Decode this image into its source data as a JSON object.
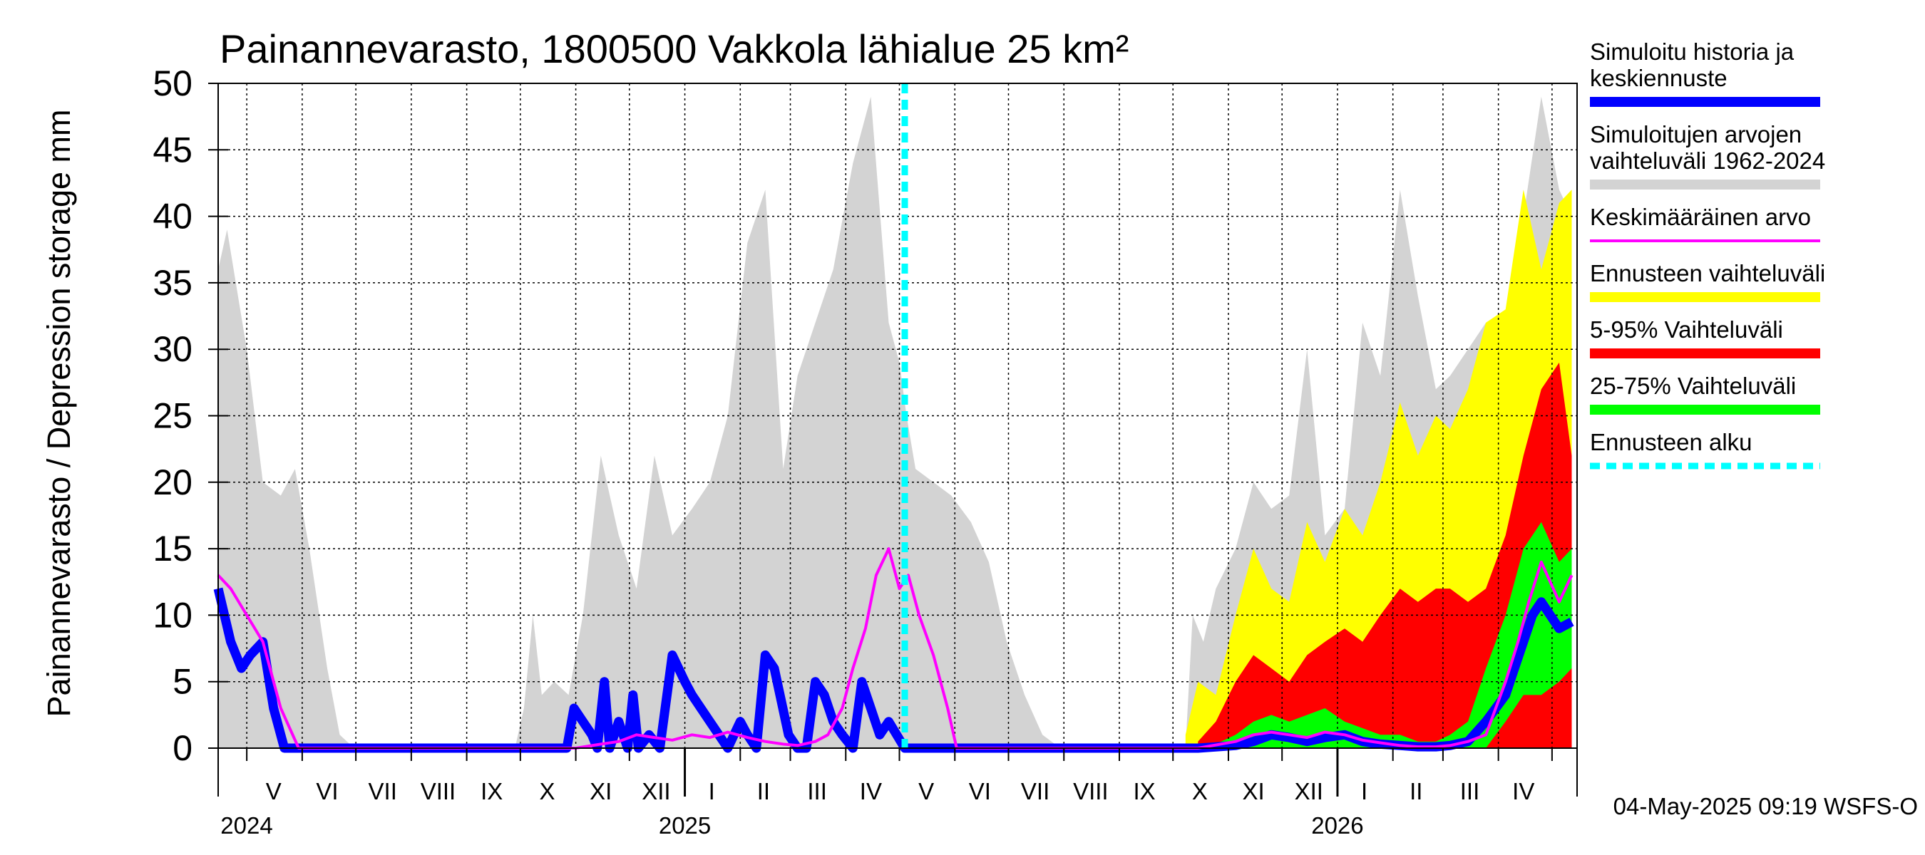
{
  "chart_data": {
    "type": "area",
    "title": "Painannevarasto, 1800500 Vakkola lähialue 25 km²",
    "ylabel": "Painannevarasto / Depression storage    mm",
    "ylim": [
      0,
      50
    ],
    "yticks": [
      0,
      5,
      10,
      15,
      20,
      25,
      30,
      35,
      40,
      45,
      50
    ],
    "xlim": [
      "2024-04-15",
      "2026-05-15"
    ],
    "grid": true,
    "legend_position": "right",
    "forecast_start": "2025-05-04",
    "month_labels": [
      {
        "label": "V",
        "date": "2024-05-16"
      },
      {
        "label": "VI",
        "date": "2024-06-15"
      },
      {
        "label": "VII",
        "date": "2024-07-16"
      },
      {
        "label": "VIII",
        "date": "2024-08-16"
      },
      {
        "label": "IX",
        "date": "2024-09-15"
      },
      {
        "label": "X",
        "date": "2024-10-16"
      },
      {
        "label": "XI",
        "date": "2024-11-15"
      },
      {
        "label": "XII",
        "date": "2024-12-16"
      },
      {
        "label": "I",
        "date": "2025-01-16"
      },
      {
        "label": "II",
        "date": "2025-02-14"
      },
      {
        "label": "III",
        "date": "2025-03-16"
      },
      {
        "label": "IV",
        "date": "2025-04-15"
      },
      {
        "label": "V",
        "date": "2025-05-16"
      },
      {
        "label": "VI",
        "date": "2025-06-15"
      },
      {
        "label": "VII",
        "date": "2025-07-16"
      },
      {
        "label": "VIII",
        "date": "2025-08-16"
      },
      {
        "label": "IX",
        "date": "2025-09-15"
      },
      {
        "label": "X",
        "date": "2025-10-16"
      },
      {
        "label": "XI",
        "date": "2025-11-15"
      },
      {
        "label": "XII",
        "date": "2025-12-16"
      },
      {
        "label": "I",
        "date": "2026-01-16"
      },
      {
        "label": "II",
        "date": "2026-02-14"
      },
      {
        "label": "III",
        "date": "2026-03-16"
      },
      {
        "label": "IV",
        "date": "2026-04-15"
      }
    ],
    "year_labels": [
      {
        "label": "2024",
        "date": "2024-05-01"
      },
      {
        "label": "2025",
        "date": "2025-01-01"
      },
      {
        "label": "2026",
        "date": "2026-01-01"
      }
    ],
    "legend": [
      {
        "label": "Simuloitu historia ja keskiennuste",
        "lines": [
          "Simuloitu historia ja",
          "keskiennuste"
        ],
        "color": "#0000ff",
        "style": "thick"
      },
      {
        "label": "Simuloitujen arvojen vaihteluväli 1962-2024",
        "lines": [
          "Simuloitujen arvojen",
          "vaihteluväli 1962-2024"
        ],
        "color": "#d3d3d3",
        "style": "thick"
      },
      {
        "label": "Keskimääräinen arvo",
        "lines": [
          "Keskimääräinen arvo"
        ],
        "color": "#ff00ff",
        "style": "thin"
      },
      {
        "label": "Ennusteen vaihteluväli",
        "lines": [
          "Ennusteen vaihteluväli"
        ],
        "color": "#ffff00",
        "style": "thick"
      },
      {
        "label": "5-95% Vaihteluväli",
        "lines": [
          "5-95% Vaihteluväli"
        ],
        "color": "#ff0000",
        "style": "thick"
      },
      {
        "label": "25-75% Vaihteluväli",
        "lines": [
          "25-75% Vaihteluväli"
        ],
        "color": "#00ff00",
        "style": "thick"
      },
      {
        "label": "Ennusteen alku",
        "lines": [
          "Ennusteen alku"
        ],
        "color": "#00ffff",
        "style": "dashed"
      }
    ],
    "series": [
      {
        "name": "Simuloitujen arvojen vaihteluväli 1962-2024",
        "color": "#d3d3d3",
        "kind": "band",
        "x": [
          "2024-04-15",
          "2024-04-20",
          "2024-05-01",
          "2024-05-10",
          "2024-05-20",
          "2024-05-28",
          "2024-06-05",
          "2024-06-15",
          "2024-06-22",
          "2024-06-30",
          "2024-09-28",
          "2024-10-03",
          "2024-10-08",
          "2024-10-13",
          "2024-10-20",
          "2024-10-28",
          "2024-11-05",
          "2024-11-15",
          "2024-11-25",
          "2024-12-05",
          "2024-12-15",
          "2024-12-25",
          "2025-01-05",
          "2025-01-15",
          "2025-01-25",
          "2025-02-05",
          "2025-02-15",
          "2025-02-25",
          "2025-03-05",
          "2025-03-15",
          "2025-03-25",
          "2025-04-05",
          "2025-04-15",
          "2025-04-25",
          "2025-05-01",
          "2025-05-05",
          "2025-05-10",
          "2025-05-20",
          "2025-05-30",
          "2025-06-10",
          "2025-06-20",
          "2025-06-30",
          "2025-07-10",
          "2025-07-20",
          "2025-07-30",
          "2025-10-08",
          "2025-10-12",
          "2025-10-18",
          "2025-10-25",
          "2025-11-05",
          "2025-11-15",
          "2025-11-25",
          "2025-12-05",
          "2025-12-15",
          "2025-12-25",
          "2026-01-05",
          "2026-01-15",
          "2026-01-25",
          "2026-02-05",
          "2026-02-15",
          "2026-02-25",
          "2026-03-05",
          "2026-03-15",
          "2026-03-25",
          "2026-04-05",
          "2026-04-15",
          "2026-04-25",
          "2026-05-05",
          "2026-05-12"
        ],
        "lo": [
          0,
          0,
          0,
          0,
          0,
          0,
          0,
          0,
          0,
          0,
          0,
          0,
          0,
          0,
          0,
          0,
          0,
          0,
          0,
          0,
          0,
          0,
          0,
          0,
          0,
          0,
          0,
          0,
          0,
          0,
          0,
          0,
          0,
          0,
          0,
          0,
          0,
          0,
          0,
          0,
          0,
          0,
          0,
          0,
          0,
          0,
          0,
          0,
          0,
          0,
          0,
          0,
          0,
          0,
          0,
          0,
          0,
          0,
          0,
          0,
          0,
          0,
          0,
          0,
          0,
          0,
          0,
          0,
          0
        ],
        "hi": [
          36,
          39,
          30,
          20,
          19,
          21,
          15,
          6,
          1,
          0,
          0,
          3,
          10,
          4,
          5,
          4,
          10,
          22,
          16,
          12,
          22,
          16,
          18,
          20,
          25,
          38,
          42,
          21,
          28,
          32,
          36,
          44,
          49,
          32,
          29,
          25,
          21,
          20,
          19,
          17,
          14,
          8,
          4,
          1,
          0,
          0,
          10,
          8,
          12,
          15,
          20,
          18,
          19,
          30,
          16,
          18,
          32,
          28,
          42,
          34,
          27,
          28,
          30,
          32,
          29,
          40,
          49,
          42,
          40
        ]
      },
      {
        "name": "Ennusteen vaihteluväli",
        "color": "#ffff00",
        "kind": "band",
        "x": [
          "2025-10-08",
          "2025-10-15",
          "2025-10-25",
          "2025-11-05",
          "2025-11-15",
          "2025-11-25",
          "2025-12-05",
          "2025-12-15",
          "2025-12-25",
          "2026-01-05",
          "2026-01-15",
          "2026-01-25",
          "2026-02-05",
          "2026-02-15",
          "2026-02-25",
          "2026-03-05",
          "2026-03-15",
          "2026-03-25",
          "2026-04-05",
          "2026-04-15",
          "2026-04-25",
          "2026-05-05",
          "2026-05-12"
        ],
        "lo": [
          0,
          0,
          0,
          0,
          0,
          0,
          0,
          0,
          0,
          0,
          0,
          0,
          0,
          0,
          0,
          0,
          0,
          0,
          0,
          0,
          0,
          0,
          0
        ],
        "hi": [
          1,
          5,
          4,
          10,
          15,
          12,
          11,
          17,
          14,
          18,
          16,
          20,
          26,
          22,
          25,
          24,
          27,
          32,
          33,
          42,
          36,
          41,
          42
        ]
      },
      {
        "name": "5-95% Vaihteluväli",
        "color": "#ff0000",
        "kind": "band",
        "x": [
          "2025-10-15",
          "2025-10-25",
          "2025-11-05",
          "2025-11-15",
          "2025-11-25",
          "2025-12-05",
          "2025-12-15",
          "2025-12-25",
          "2026-01-05",
          "2026-01-15",
          "2026-01-25",
          "2026-02-05",
          "2026-02-15",
          "2026-02-25",
          "2026-03-05",
          "2026-03-15",
          "2026-03-25",
          "2026-04-05",
          "2026-04-15",
          "2026-04-25",
          "2026-05-05",
          "2026-05-12"
        ],
        "lo": [
          0,
          0,
          0,
          0,
          0,
          0,
          0,
          0,
          0,
          0,
          0,
          0,
          0,
          0,
          0,
          0,
          0,
          0,
          0,
          0,
          0,
          0
        ],
        "hi": [
          0.5,
          2,
          5,
          7,
          6,
          5,
          7,
          8,
          9,
          8,
          10,
          12,
          11,
          12,
          12,
          11,
          12,
          16,
          22,
          27,
          29,
          22
        ]
      },
      {
        "name": "25-75% Vaihteluväli",
        "color": "#00ff00",
        "kind": "band",
        "x": [
          "2025-10-20",
          "2025-11-05",
          "2025-11-15",
          "2025-11-25",
          "2025-12-05",
          "2025-12-15",
          "2025-12-25",
          "2026-01-05",
          "2026-01-15",
          "2026-01-25",
          "2026-02-05",
          "2026-02-15",
          "2026-02-25",
          "2026-03-05",
          "2026-03-15",
          "2026-03-25",
          "2026-04-05",
          "2026-04-15",
          "2026-04-25",
          "2026-05-05",
          "2026-05-12"
        ],
        "lo": [
          0,
          0,
          0,
          0,
          0,
          0,
          0,
          0,
          0,
          0,
          0,
          0,
          0,
          0,
          0,
          0,
          2,
          4,
          4,
          5,
          6
        ],
        "hi": [
          0,
          1,
          2,
          2.5,
          2,
          2.5,
          3,
          2,
          1.5,
          1,
          1,
          0.5,
          0.5,
          1,
          2,
          6,
          10,
          15,
          17,
          14,
          15
        ]
      },
      {
        "name": "Simuloitu historia ja keskiennuste",
        "color": "#0000ff",
        "kind": "line",
        "x": [
          "2024-04-15",
          "2024-04-22",
          "2024-04-28",
          "2024-05-03",
          "2024-05-10",
          "2024-05-16",
          "2024-05-22",
          "2024-05-28",
          "2024-06-05",
          "2024-10-27",
          "2024-10-31",
          "2024-11-05",
          "2024-11-10",
          "2024-11-13",
          "2024-11-17",
          "2024-11-20",
          "2024-11-25",
          "2024-11-30",
          "2024-12-03",
          "2024-12-06",
          "2024-12-12",
          "2024-12-18",
          "2024-12-25",
          "2025-01-01",
          "2025-01-05",
          "2025-01-10",
          "2025-01-15",
          "2025-01-20",
          "2025-01-25",
          "2025-02-01",
          "2025-02-05",
          "2025-02-10",
          "2025-02-15",
          "2025-02-20",
          "2025-02-28",
          "2025-03-05",
          "2025-03-10",
          "2025-03-15",
          "2025-03-20",
          "2025-03-25",
          "2025-03-30",
          "2025-04-05",
          "2025-04-10",
          "2025-04-15",
          "2025-04-20",
          "2025-04-25",
          "2025-05-04",
          "2025-10-15",
          "2025-11-05",
          "2025-11-15",
          "2025-11-25",
          "2025-12-05",
          "2025-12-15",
          "2025-12-25",
          "2026-01-05",
          "2026-01-15",
          "2026-01-25",
          "2026-02-05",
          "2026-02-15",
          "2026-02-25",
          "2026-03-05",
          "2026-03-15",
          "2026-03-25",
          "2026-04-05",
          "2026-04-10",
          "2026-04-15",
          "2026-04-20",
          "2026-04-25",
          "2026-05-05",
          "2026-05-12"
        ],
        "y": [
          12,
          8,
          6,
          7,
          8,
          3,
          0,
          0,
          0,
          0,
          3,
          2,
          1,
          0,
          5,
          0,
          2,
          0,
          4,
          0,
          1,
          0,
          7,
          5,
          4,
          3,
          2,
          1,
          0,
          2,
          1,
          0,
          7,
          6,
          1,
          0,
          0,
          5,
          4,
          2,
          1,
          0,
          5,
          3,
          1,
          2,
          0,
          0,
          0.2,
          0.5,
          1,
          0.8,
          0.5,
          0.8,
          1,
          0.5,
          0.3,
          0.2,
          0.1,
          0.1,
          0.2,
          0.5,
          2,
          4,
          6,
          8,
          10,
          11,
          9,
          9.5
        ]
      },
      {
        "name": "Keskimääräinen arvo",
        "color": "#ff00ff",
        "kind": "line",
        "x": [
          "2024-04-15",
          "2024-04-22",
          "2024-05-01",
          "2024-05-10",
          "2024-05-20",
          "2024-05-30",
          "2024-10-20",
          "2024-11-01",
          "2024-11-15",
          "2024-11-25",
          "2024-12-05",
          "2024-12-15",
          "2024-12-25",
          "2025-01-05",
          "2025-01-15",
          "2025-01-25",
          "2025-02-05",
          "2025-02-15",
          "2025-02-25",
          "2025-03-05",
          "2025-03-15",
          "2025-03-22",
          "2025-03-30",
          "2025-04-05",
          "2025-04-12",
          "2025-04-18",
          "2025-04-25",
          "2025-05-01",
          "2025-05-06",
          "2025-05-12",
          "2025-05-20",
          "2025-05-28",
          "2025-06-02",
          "2025-10-15",
          "2025-11-05",
          "2025-11-15",
          "2025-11-25",
          "2025-12-05",
          "2025-12-15",
          "2025-12-25",
          "2026-01-05",
          "2026-01-15",
          "2026-01-25",
          "2026-02-05",
          "2026-02-15",
          "2026-02-25",
          "2026-03-05",
          "2026-03-15",
          "2026-03-25",
          "2026-04-05",
          "2026-04-12",
          "2026-04-18",
          "2026-04-25",
          "2026-05-05",
          "2026-05-12"
        ],
        "y": [
          13,
          12,
          10,
          8,
          3,
          0,
          0,
          0,
          0.3,
          0.5,
          1,
          0.8,
          0.6,
          1,
          0.8,
          1.2,
          0.8,
          0.5,
          0.3,
          0.2,
          0.5,
          1,
          3,
          6,
          9,
          13,
          15,
          12,
          13,
          10,
          7,
          3,
          0,
          0,
          0.5,
          1,
          1.2,
          1,
          0.8,
          1.2,
          1,
          0.6,
          0.4,
          0.2,
          0.1,
          0.1,
          0.2,
          0.5,
          1,
          5,
          8,
          11,
          14,
          11,
          13
        ]
      }
    ]
  },
  "footer": "04-May-2025 09:19 WSFS-O"
}
